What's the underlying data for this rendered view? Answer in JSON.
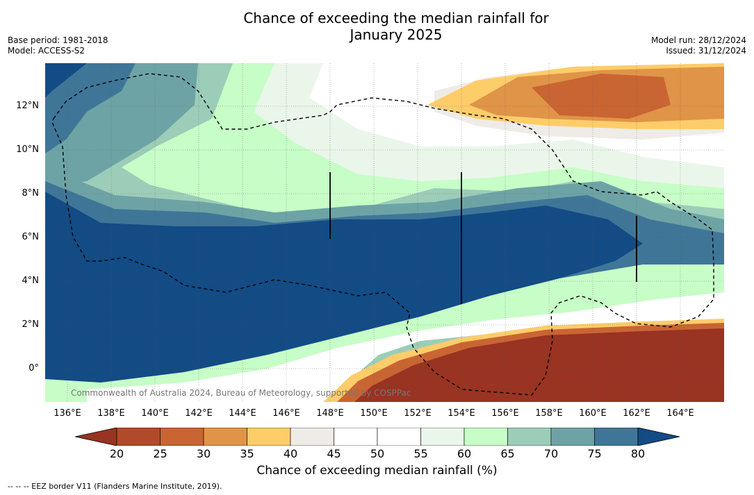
{
  "title_line1": "Chance of exceeding the median rainfall for",
  "title_line2": "January 2025",
  "base_period": "Base period: 1981-2018",
  "model": "Model: ACCESS-S2",
  "model_run": "Model run: 28/12/2024",
  "issued": "Issued: 31/12/2024",
  "credit": "Commonwealth of Australia 2024, Bureau of Meteorology, supported by COSPPac",
  "footnote": "-- -- -- EEZ border V11 (Flanders Marine Institute, 2019).",
  "lat_labels": [
    "12°N",
    "10°N",
    "8°N",
    "6°N",
    "4°N",
    "2°N",
    "0°"
  ],
  "lon_labels": [
    "136°E",
    "138°E",
    "140°E",
    "142°E",
    "144°E",
    "146°E",
    "148°E",
    "150°E",
    "152°E",
    "154°E",
    "156°E",
    "158°E",
    "160°E",
    "162°E",
    "164°E"
  ],
  "colorbar": {
    "title": "Chance of exceeding median rainfall (%)",
    "labels": [
      "20",
      "25",
      "30",
      "35",
      "40",
      "45",
      "50",
      "55",
      "60",
      "65",
      "70",
      "75",
      "80"
    ],
    "colors": [
      "#993322",
      "#b04a2a",
      "#c96533",
      "#e09448",
      "#fdcd6a",
      "#efebe7",
      "#ffffff",
      "#ffffff",
      "#eaf6ea",
      "#c7fdc7",
      "#9ccdb8",
      "#6ea3a6",
      "#3f7698",
      "#134b85"
    ]
  },
  "chart_data": {
    "type": "map",
    "extent": {
      "lon": [
        135,
        166
      ],
      "lat": [
        -1.5,
        14
      ]
    },
    "field": "Chance of exceeding median rainfall (%)",
    "bands": [
      {
        "lat_range": [
          0,
          2
        ],
        "value": "<20"
      },
      {
        "lat_range": [
          3,
          7
        ],
        "value": ">80"
      },
      {
        "lat_range": [
          8,
          11
        ],
        "value": "55-70"
      },
      {
        "lat_range": [
          11.5,
          13.5
        ],
        "lon_range": [
          152,
          166
        ],
        "value": "20-40"
      }
    ]
  }
}
